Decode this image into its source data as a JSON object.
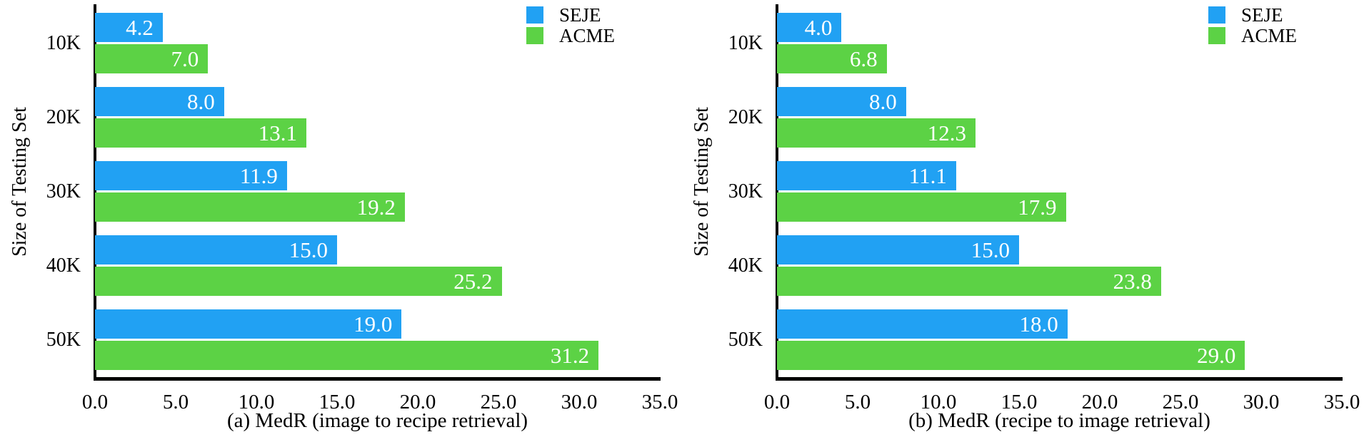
{
  "chart_data": [
    {
      "type": "bar",
      "orientation": "horizontal",
      "caption": "(a) MedR (image to recipe retrieval)",
      "ylabel": "Size of Testing Set",
      "categories": [
        "10K",
        "20K",
        "30K",
        "40K",
        "50K"
      ],
      "series": [
        {
          "name": "SEJE",
          "color": "#21A1F3",
          "values": [
            4.2,
            8.0,
            11.9,
            15.0,
            19.0
          ],
          "labels": [
            "4.2",
            "8.0",
            "11.9",
            "15.0",
            "19.0"
          ]
        },
        {
          "name": "ACME",
          "color": "#5CD245",
          "values": [
            7.0,
            13.1,
            19.2,
            25.2,
            31.2
          ],
          "labels": [
            "7.0",
            "13.1",
            "19.2",
            "25.2",
            "31.2"
          ]
        }
      ],
      "xlim": [
        0,
        35
      ],
      "xticks": [
        "0.0",
        "5.0",
        "10.0",
        "15.0",
        "20.0",
        "25.0",
        "30.0",
        "35.0"
      ],
      "legend": {
        "position": "top-right",
        "entries": [
          "SEJE",
          "ACME"
        ]
      },
      "grid": false,
      "bar_label_color": "#FFFFFF",
      "axis_color": "#000000",
      "background_color": "#FFFFFF"
    },
    {
      "type": "bar",
      "orientation": "horizontal",
      "caption": "(b) MedR (recipe to image retrieval)",
      "ylabel": "Size of Testing Set",
      "categories": [
        "10K",
        "20K",
        "30K",
        "40K",
        "50K"
      ],
      "series": [
        {
          "name": "SEJE",
          "color": "#21A1F3",
          "values": [
            4.0,
            8.0,
            11.1,
            15.0,
            18.0
          ],
          "labels": [
            "4.0",
            "8.0",
            "11.1",
            "15.0",
            "18.0"
          ]
        },
        {
          "name": "ACME",
          "color": "#5CD245",
          "values": [
            6.8,
            12.3,
            17.9,
            23.8,
            29.0
          ],
          "labels": [
            "6.8",
            "12.3",
            "17.9",
            "23.8",
            "29.0"
          ]
        }
      ],
      "xlim": [
        0,
        35
      ],
      "xticks": [
        "0.0",
        "5.0",
        "10.0",
        "15.0",
        "20.0",
        "25.0",
        "30.0",
        "35.0"
      ],
      "legend": {
        "position": "top-right",
        "entries": [
          "SEJE",
          "ACME"
        ]
      },
      "grid": false,
      "bar_label_color": "#FFFFFF",
      "axis_color": "#000000",
      "background_color": "#FFFFFF"
    }
  ]
}
